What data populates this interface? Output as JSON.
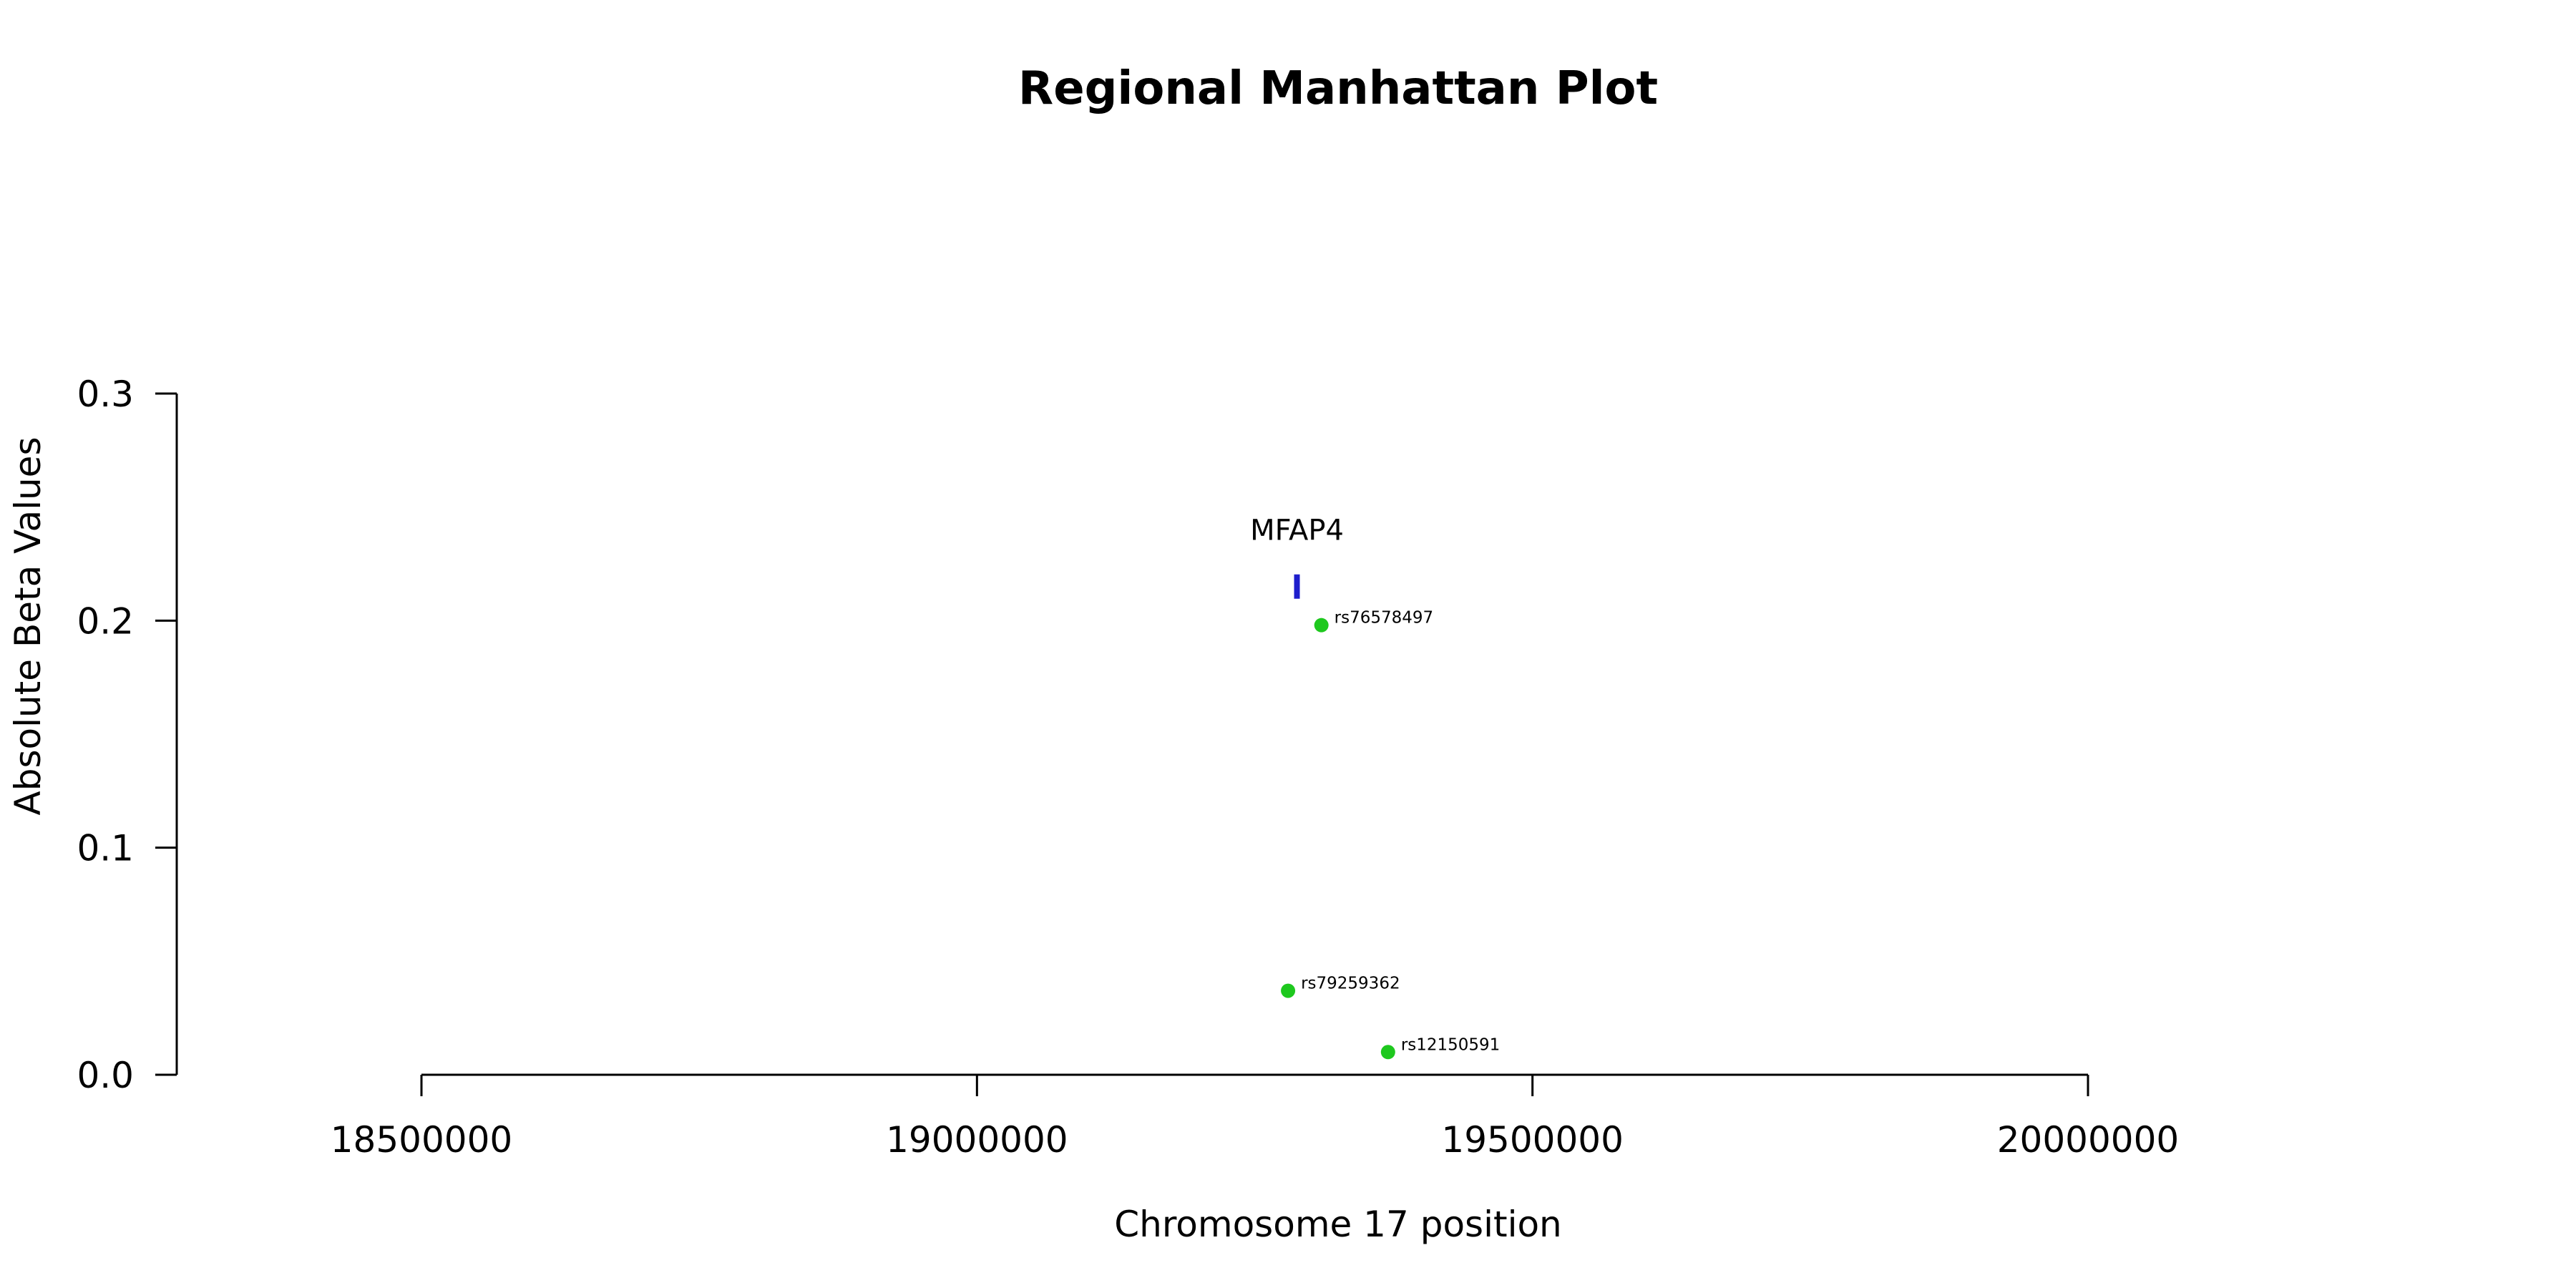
{
  "chart_data": {
    "type": "scatter",
    "title": "Regional Manhattan Plot",
    "xlabel": "Chromosome 17 position",
    "ylabel": "Absolute Beta Values",
    "xlim": [
      18500000,
      20000000
    ],
    "ylim": [
      0,
      0.3
    ],
    "x_ticks": [
      18500000,
      19000000,
      19500000,
      20000000
    ],
    "y_ticks": [
      0.0,
      0.1,
      0.2,
      0.3
    ],
    "x_tick_labels": [
      "18500000",
      "19000000",
      "19500000",
      "20000000"
    ],
    "y_tick_labels": [
      "0.0",
      "0.1",
      "0.2",
      "0.3"
    ],
    "grid": false,
    "points": [
      {
        "label": "rs76578497",
        "x": 19310000,
        "y": 0.198
      },
      {
        "label": "rs79259362",
        "x": 19280000,
        "y": 0.037
      },
      {
        "label": "rs12150591",
        "x": 19370000,
        "y": 0.01
      }
    ],
    "genes": [
      {
        "name": "MFAP4",
        "start": 19286000,
        "end": 19290000,
        "y": 0.215
      }
    ],
    "colors": {
      "points": "#1ec81e",
      "gene": "#1e1ecc",
      "axis": "#000000"
    }
  }
}
